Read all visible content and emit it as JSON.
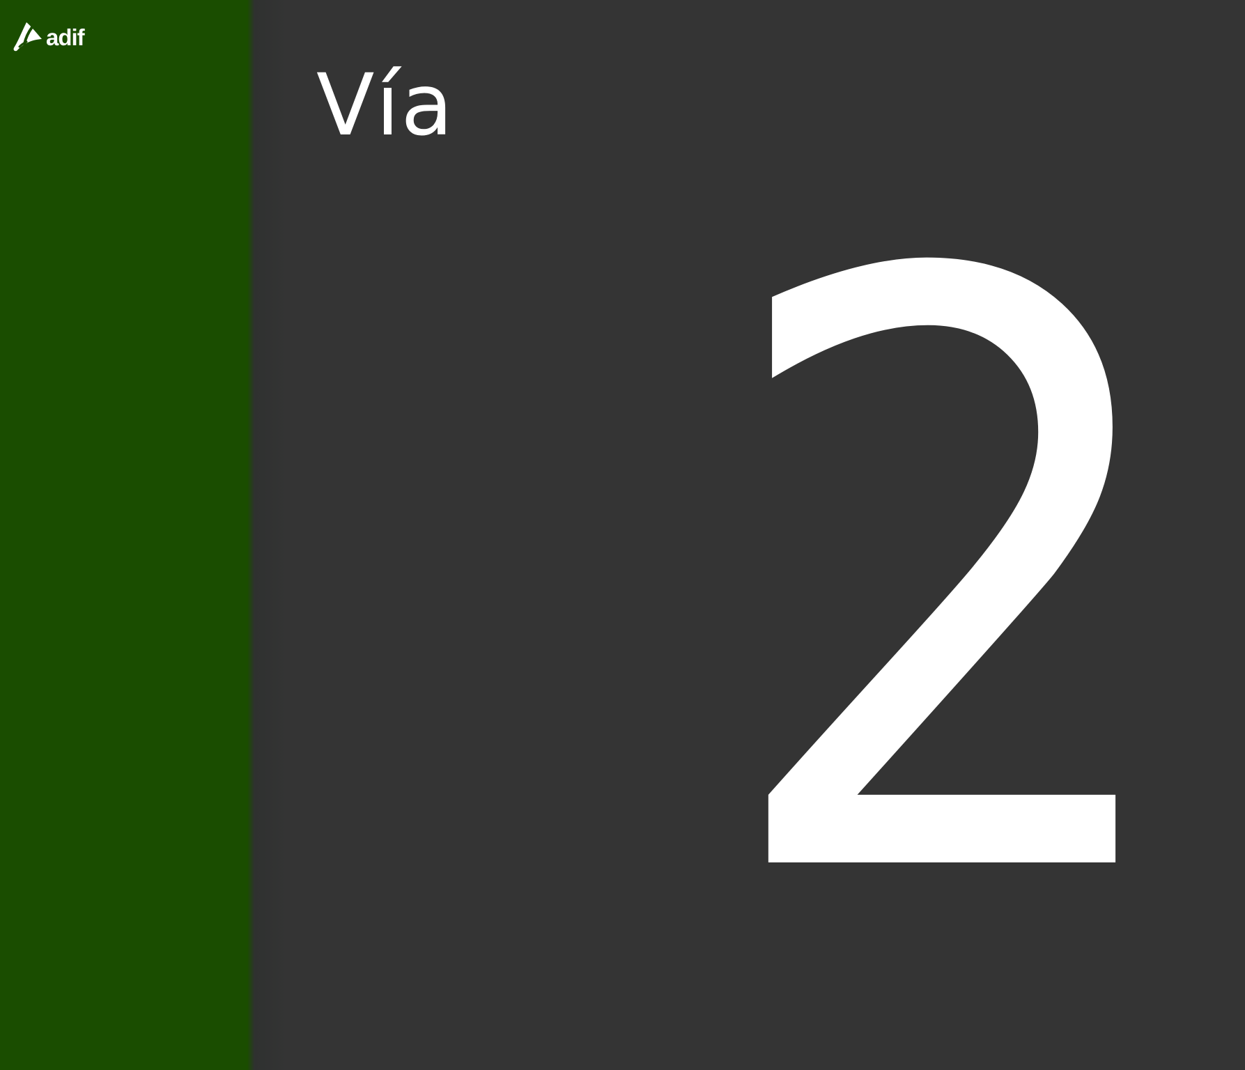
{
  "app": {
    "brand": "adif",
    "colors": {
      "sidebar": "#1a4d00",
      "background": "#343434",
      "text": "#ffffff"
    }
  },
  "display": {
    "label": "Vía",
    "value": "2"
  },
  "icons": {
    "logo": "adif-logo-icon"
  }
}
